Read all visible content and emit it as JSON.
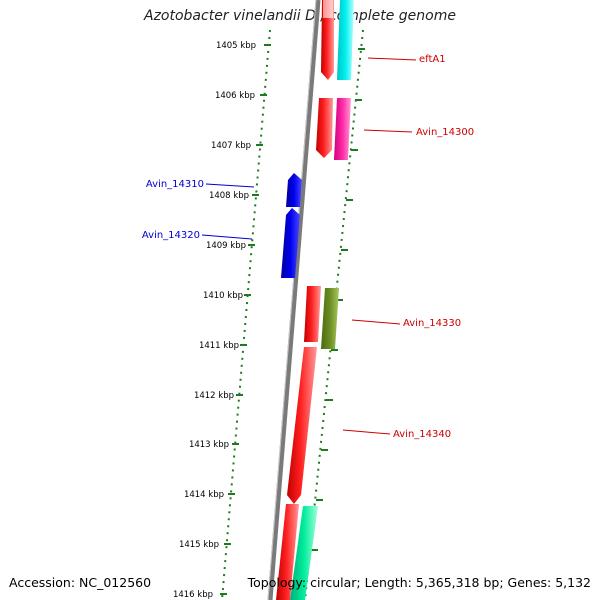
{
  "title": "Azotobacter vinelandii DJ, complete genome",
  "accession": "Accession: NC_012560",
  "topology": "Topology: circular; Length: 5,365,318 bp; Genes: 5,132",
  "colors": {
    "backbone": "#8c8c8c",
    "tick": "#1e7a1e",
    "forward_label": "#cc0000",
    "reverse_label": "#0000cc",
    "red_gene": "#ff0000",
    "blue_gene": "#0000ee",
    "cyan_gene": "#00e5e5",
    "magenta_gene": "#ff22aa",
    "olive_gene": "#6b8e23",
    "teal_gene": "#00e6a0"
  },
  "scale_labels": [
    "1405 kbp",
    "1406 kbp",
    "1407 kbp",
    "1408 kbp",
    "1409 kbp",
    "1410 kbp",
    "1411 kbp",
    "1412 kbp",
    "1413 kbp",
    "1414 kbp",
    "1415 kbp",
    "1416 kbp"
  ],
  "gene_labels": {
    "eftA1": "eftA1",
    "avin14300": "Avin_14300",
    "avin14310": "Avin_14310",
    "avin14320": "Avin_14320",
    "avin14330": "Avin_14330",
    "avin14340": "Avin_14340"
  }
}
